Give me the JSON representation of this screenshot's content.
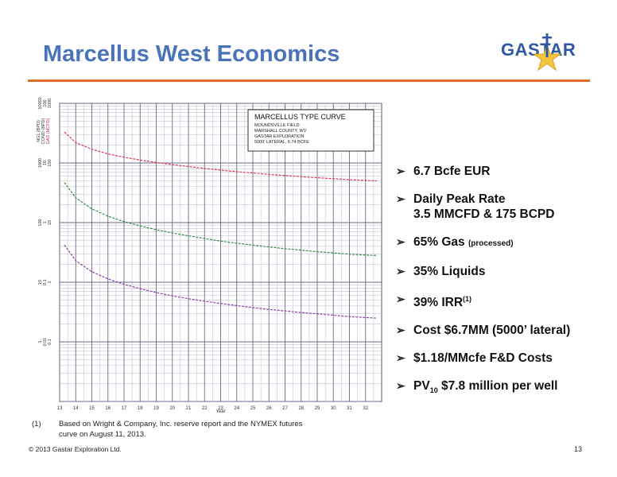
{
  "slide": {
    "title": "Marcellus West Economics",
    "accent_color": "#e06c24",
    "title_color": "#4a73b8",
    "logo_text": "GASTAR",
    "page_number": "13",
    "copyright": "© 2013 Gastar Exploration Ltd."
  },
  "bullets": [
    {
      "main": "6.7 Bcfe EUR"
    },
    {
      "main": "Daily Peak Rate",
      "line2": "3.5 MMCFD & 175 BCPD"
    },
    {
      "main": "65% Gas ",
      "small": "(processed)"
    },
    {
      "main": "35% Liquids"
    },
    {
      "main": "39% IRR",
      "sup": "(1)"
    },
    {
      "main": "Cost $6.7MM (5000’ lateral)"
    },
    {
      "main": "$1.18/MMcfe F&D Costs"
    },
    {
      "pre": "PV",
      "sub": "10",
      "main": " $7.8 million per well"
    }
  ],
  "footnote": {
    "number": "(1)",
    "text": "Based on Wright & Company, Inc. reserve report and the NYMEX futures curve on August 11, 2013."
  },
  "chart_data": {
    "type": "line",
    "legend_box": {
      "title": "MARCELLUS TYPE CURVE",
      "lines": [
        "MOUNDSVILLE FIELD",
        "MARSHALL COUNTY, WV",
        "GASTAR EXPLORATION",
        "5000' LATERAL, 6.74 BCFE"
      ]
    },
    "xlabel": "Year",
    "x_ticks": [
      "13",
      "14",
      "15",
      "16",
      "17",
      "18",
      "19",
      "20",
      "21",
      "22",
      "23",
      "24",
      "25",
      "26",
      "27",
      "28",
      "29",
      "30",
      "31",
      "32"
    ],
    "xlim": [
      13,
      33
    ],
    "y_scale": "log",
    "ylim": [
      0.1,
      10000
    ],
    "y_axis_label_lines": [
      "NGL (BPD)",
      "COND (BPD)",
      "GAS (MCFD)"
    ],
    "y_tick_groups": [
      {
        "decade": 10000,
        "labels": [
          "10000",
          "100",
          "1000"
        ]
      },
      {
        "decade": 1000,
        "labels": [
          "1000",
          "10",
          "100"
        ]
      },
      {
        "decade": 100,
        "labels": [
          "100",
          "1",
          "10"
        ]
      },
      {
        "decade": 10,
        "labels": [
          "10",
          "0.1",
          "1"
        ]
      },
      {
        "decade": 1,
        "labels": [
          "1",
          "0.01",
          "0.1"
        ]
      }
    ],
    "grid": true,
    "series": [
      {
        "color": "#d8375a",
        "x": [
          13.3,
          14,
          15,
          16,
          17,
          18,
          19,
          20,
          21,
          22,
          23,
          24,
          25,
          26,
          27,
          28,
          29,
          30,
          31,
          32.7
        ],
        "y": [
          3300,
          2200,
          1700,
          1420,
          1250,
          1120,
          1020,
          940,
          870,
          810,
          760,
          715,
          680,
          645,
          615,
          590,
          565,
          545,
          525,
          500
        ]
      },
      {
        "color": "#3b8a4a",
        "x": [
          13.3,
          14,
          15,
          16,
          17,
          18,
          19,
          20,
          21,
          22,
          23,
          24,
          25,
          26,
          27,
          28,
          29,
          30,
          31,
          32.7
        ],
        "y": [
          470,
          260,
          170,
          128,
          104,
          88,
          76,
          67,
          60,
          54,
          49,
          45,
          42,
          39,
          36.5,
          34.5,
          32.5,
          31,
          29.5,
          28
        ]
      },
      {
        "color": "#8a3fa5",
        "x": [
          13.3,
          14,
          15,
          16,
          17,
          18,
          19,
          20,
          21,
          22,
          23,
          24,
          25,
          26,
          27,
          28,
          29,
          30,
          31,
          32.7
        ],
        "y": [
          42,
          23,
          15,
          11.4,
          9.2,
          7.8,
          6.7,
          5.9,
          5.3,
          4.8,
          4.4,
          4.05,
          3.75,
          3.5,
          3.3,
          3.1,
          2.95,
          2.8,
          2.65,
          2.5
        ]
      }
    ]
  }
}
